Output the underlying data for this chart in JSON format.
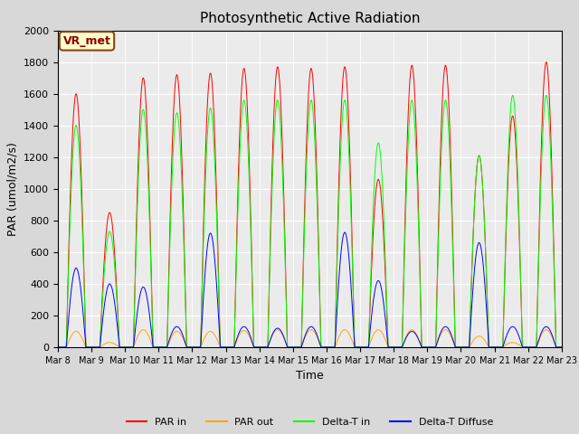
{
  "title": "Photosynthetic Active Radiation",
  "ylabel": "PAR (umol/m2/s)",
  "xlabel": "Time",
  "ylim": [
    0,
    2000
  ],
  "outer_bg": "#d8d8d8",
  "plot_bg": "#ebebeb",
  "label_box_text": "VR_met",
  "legend_labels": [
    "PAR in",
    "PAR out",
    "Delta-T in",
    "Delta-T Diffuse"
  ],
  "line_colors": [
    "red",
    "orange",
    "lime",
    "blue"
  ],
  "n_days": 15,
  "start_day": 8,
  "month": "Mar",
  "par_in_peaks": [
    1600,
    850,
    1700,
    1720,
    1730,
    1760,
    1770,
    1760,
    1770,
    1060,
    1780,
    1780,
    1210,
    1460,
    1800
  ],
  "par_out_peaks": [
    100,
    30,
    110,
    100,
    100,
    105,
    110,
    110,
    110,
    110,
    110,
    110,
    70,
    30,
    110
  ],
  "delta_t_peaks": [
    1400,
    730,
    1500,
    1480,
    1510,
    1560,
    1560,
    1560,
    1560,
    1290,
    1560,
    1560,
    1210,
    1590,
    1590
  ],
  "delta_t_diff_peaks": [
    500,
    400,
    380,
    130,
    720,
    130,
    120,
    130,
    725,
    420,
    100,
    130,
    660,
    130,
    130
  ]
}
